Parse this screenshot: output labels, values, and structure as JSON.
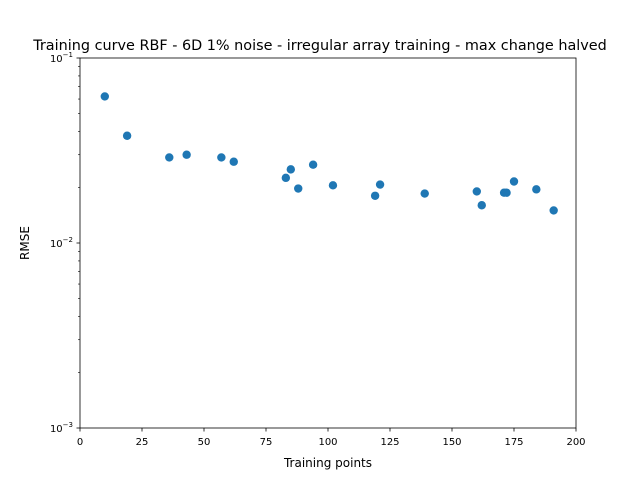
{
  "chart_data": {
    "type": "scatter",
    "title": "Training curve RBF - 6D 1% noise - irregular array training - max change halved",
    "xlabel": "Training points",
    "ylabel": "RMSE",
    "xlim": [
      0,
      200
    ],
    "ylim": [
      0.001,
      0.1
    ],
    "yscale": "log",
    "grid": false,
    "marker_color": "#1f77b4",
    "x_ticks": [
      0,
      25,
      50,
      75,
      100,
      125,
      150,
      175,
      200
    ],
    "y_ticks": [
      {
        "value": 0.001,
        "base": "10",
        "exp": "−3"
      },
      {
        "value": 0.01,
        "base": "10",
        "exp": "−2"
      },
      {
        "value": 0.1,
        "base": "10",
        "exp": "−1"
      }
    ],
    "series": [
      {
        "x": [
          10,
          19,
          36,
          43,
          57,
          62,
          83,
          85,
          88,
          94,
          102,
          119,
          121,
          139,
          160,
          162,
          171,
          172,
          175,
          184,
          191
        ],
        "y": [
          0.062,
          0.038,
          0.029,
          0.03,
          0.029,
          0.0275,
          0.0225,
          0.025,
          0.0197,
          0.0265,
          0.0205,
          0.018,
          0.0207,
          0.0185,
          0.019,
          0.016,
          0.0187,
          0.0187,
          0.0215,
          0.0195,
          0.015
        ]
      }
    ]
  }
}
